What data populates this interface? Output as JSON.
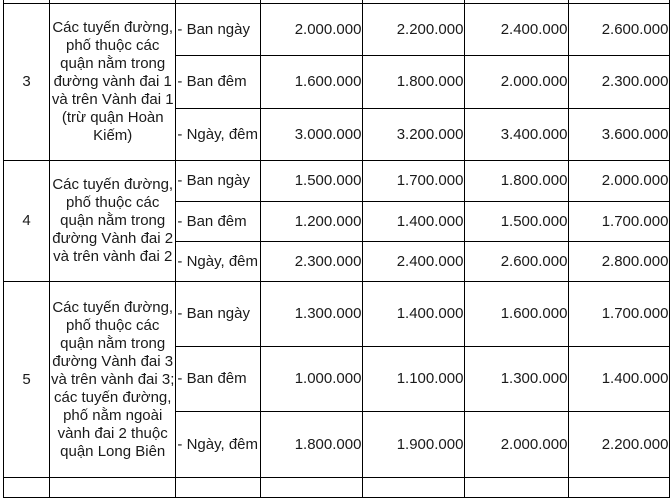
{
  "rows": [
    {
      "no": "3",
      "description": [
        "Các tuyến đường,",
        "phố thuộc các",
        "quận nằm trong",
        "đường vành đai 1",
        "và trên Vành đai 1",
        "(trừ quận Hoàn",
        "Kiếm)"
      ],
      "sub": [
        {
          "time": "- Ban ngày",
          "values": [
            "2.000.000",
            "2.200.000",
            "2.400.000",
            "2.600.000"
          ]
        },
        {
          "time": "- Ban đêm",
          "values": [
            "1.600.000",
            "1.800.000",
            "2.000.000",
            "2.300.000"
          ]
        },
        {
          "time": "- Ngày, đêm",
          "values": [
            "3.000.000",
            "3.200.000",
            "3.400.000",
            "3.600.000"
          ]
        }
      ]
    },
    {
      "no": "4",
      "description": [
        "Các tuyến đường,",
        "phố thuộc các",
        "quận nằm trong",
        "đường Vành đai 2",
        "và trên vành đai 2"
      ],
      "sub": [
        {
          "time": "- Ban ngày",
          "values": [
            "1.500.000",
            "1.700.000",
            "1.800.000",
            "2.000.000"
          ]
        },
        {
          "time": "- Ban đêm",
          "values": [
            "1.200.000",
            "1.400.000",
            "1.500.000",
            "1.700.000"
          ]
        },
        {
          "time": "- Ngày, đêm",
          "values": [
            "2.300.000",
            "2.400.000",
            "2.600.000",
            "2.800.000"
          ]
        }
      ]
    },
    {
      "no": "5",
      "description": [
        "Các tuyến đường,",
        "phố thuộc các",
        "quận nằm trong",
        "đường Vành đai 3",
        "và trên vành đai 3;",
        "các tuyến đường,",
        "phố nằm ngoài",
        "vành đai 2 thuộc",
        "quận Long Biên"
      ],
      "sub": [
        {
          "time": "- Ban ngày",
          "values": [
            "1.300.000",
            "1.400.000",
            "1.600.000",
            "1.700.000"
          ]
        },
        {
          "time": "- Ban đêm",
          "values": [
            "1.000.000",
            "1.100.000",
            "1.300.000",
            "1.400.000"
          ]
        },
        {
          "time": "- Ngày, đêm",
          "values": [
            "1.800.000",
            "1.900.000",
            "2.000.000",
            "2.200.000"
          ]
        }
      ]
    }
  ]
}
